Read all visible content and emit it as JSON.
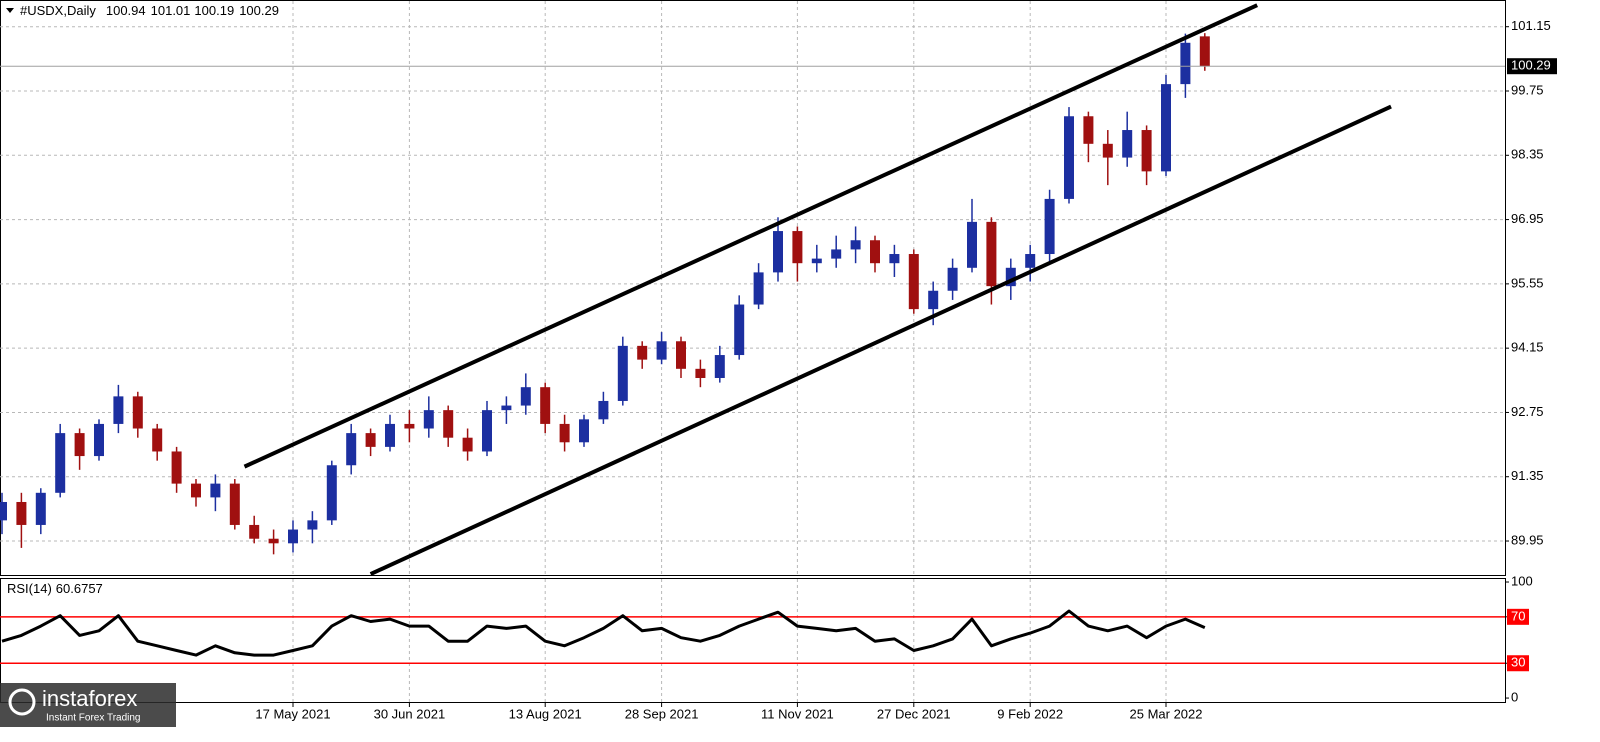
{
  "chart_data": [
    {
      "type": "candlestick",
      "title": "#USDX,Daily",
      "categories": [
        null,
        null,
        null,
        null,
        null,
        null,
        null,
        null,
        null,
        null,
        null,
        null,
        null,
        null,
        null,
        "17 May 2021",
        null,
        null,
        null,
        null,
        null,
        "30 Jun 2021",
        null,
        null,
        null,
        null,
        null,
        null,
        "13 Aug 2021",
        null,
        null,
        null,
        null,
        null,
        "28 Sep 2021",
        null,
        null,
        null,
        null,
        null,
        null,
        "11 Nov 2021",
        null,
        null,
        null,
        null,
        null,
        "27 Dec 2021",
        null,
        null,
        null,
        null,
        null,
        "9 Feb 2022",
        null,
        null,
        null,
        null,
        null,
        null,
        "25 Mar 2022",
        null,
        null
      ],
      "open": [
        90.4,
        90.8,
        90.3,
        91.0,
        92.3,
        91.8,
        92.5,
        93.1,
        92.4,
        91.9,
        91.2,
        90.9,
        91.2,
        90.3,
        90.0,
        89.9,
        90.2,
        90.4,
        91.6,
        92.3,
        92.0,
        92.5,
        92.4,
        92.8,
        92.2,
        91.9,
        92.8,
        92.9,
        93.3,
        92.5,
        92.1,
        92.6,
        93.0,
        94.2,
        93.9,
        94.3,
        93.7,
        93.5,
        94.0,
        95.1,
        95.8,
        96.7,
        96.0,
        96.1,
        96.3,
        96.5,
        96.0,
        96.2,
        95.0,
        95.4,
        95.9,
        96.9,
        95.5,
        95.9,
        96.2,
        97.4,
        99.2,
        98.6,
        98.3,
        98.9,
        98.0,
        99.9,
        100.94
      ],
      "high": [
        91.0,
        91.0,
        91.1,
        92.5,
        92.4,
        92.6,
        93.35,
        93.2,
        92.5,
        92.0,
        91.3,
        91.4,
        91.3,
        90.5,
        90.2,
        90.4,
        90.6,
        91.7,
        92.5,
        92.4,
        92.7,
        92.8,
        93.1,
        92.9,
        92.4,
        93.0,
        93.1,
        93.6,
        93.4,
        92.7,
        92.7,
        93.2,
        94.4,
        94.3,
        94.5,
        94.4,
        93.9,
        94.2,
        95.3,
        96.0,
        97.0,
        96.8,
        96.4,
        96.6,
        96.8,
        96.6,
        96.4,
        96.3,
        95.6,
        96.1,
        97.4,
        97.0,
        96.1,
        96.4,
        97.6,
        99.4,
        99.3,
        98.9,
        99.3,
        99.0,
        100.1,
        101.0,
        101.01
      ],
      "low": [
        90.1,
        89.8,
        90.1,
        90.9,
        91.5,
        91.7,
        92.3,
        92.2,
        91.7,
        91.0,
        90.7,
        90.6,
        90.2,
        89.9,
        89.66,
        89.7,
        89.9,
        90.3,
        91.4,
        91.8,
        91.9,
        92.1,
        92.2,
        92.0,
        91.7,
        91.8,
        92.5,
        92.7,
        92.3,
        91.9,
        92.0,
        92.5,
        92.9,
        93.7,
        93.8,
        93.5,
        93.3,
        93.4,
        93.9,
        95.0,
        95.6,
        95.6,
        95.8,
        95.9,
        96.0,
        95.8,
        95.7,
        94.9,
        94.65,
        95.2,
        95.8,
        95.1,
        95.2,
        95.6,
        96.0,
        97.3,
        98.2,
        97.7,
        98.1,
        97.7,
        97.9,
        99.6,
        100.19
      ],
      "close": [
        90.8,
        90.3,
        91.0,
        92.3,
        91.8,
        92.5,
        93.1,
        92.4,
        91.9,
        91.2,
        90.9,
        91.2,
        90.3,
        90.0,
        89.9,
        90.2,
        90.4,
        91.6,
        92.3,
        92.0,
        92.5,
        92.4,
        92.8,
        92.2,
        91.9,
        92.8,
        92.9,
        93.3,
        92.5,
        92.1,
        92.6,
        93.0,
        94.2,
        93.9,
        94.3,
        93.7,
        93.5,
        94.0,
        95.1,
        95.8,
        96.7,
        96.0,
        96.1,
        96.3,
        96.5,
        96.0,
        96.2,
        95.0,
        95.4,
        95.9,
        96.9,
        95.5,
        95.9,
        96.2,
        97.4,
        99.2,
        98.6,
        98.3,
        98.9,
        98.0,
        99.9,
        100.8,
        100.29
      ],
      "up_color": "#1c2fa0",
      "down_color": "#a01010",
      "ylim": [
        89.21,
        101.71
      ],
      "yticks": [
        89.95,
        91.35,
        92.75,
        94.15,
        95.55,
        96.95,
        98.35,
        99.75,
        101.15
      ],
      "grid": true,
      "trendlines": [
        {
          "x": [
            12.5,
            64.7
          ],
          "y": [
            91.57,
            101.62
          ],
          "color": "#000000"
        },
        {
          "x": [
            19.0,
            71.6
          ],
          "y": [
            89.23,
            99.41
          ],
          "color": "#000000"
        }
      ]
    },
    {
      "type": "line",
      "title": "RSI(14)",
      "color": "#000000",
      "values": [
        49,
        54,
        62,
        71,
        54,
        58,
        71,
        49,
        45,
        41,
        37,
        45,
        39,
        37,
        37,
        41,
        45,
        62,
        71,
        66,
        68,
        62,
        62,
        49,
        49,
        62,
        60,
        62,
        49,
        45,
        52,
        60,
        71,
        58,
        60,
        52,
        49,
        54,
        62,
        68,
        74,
        62,
        60,
        58,
        60,
        49,
        51,
        41,
        45,
        51,
        68,
        45,
        51,
        56,
        62,
        75,
        62,
        58,
        62,
        52,
        62,
        68,
        60.6757
      ],
      "ylim": [
        -3.4,
        102.6
      ],
      "yticks": [
        0,
        30,
        70,
        100
      ],
      "levels": [
        30,
        70
      ],
      "level_color": "#ff0000"
    }
  ],
  "branding": {
    "name": "instaforex",
    "tagline": "Instant Forex Trading"
  }
}
